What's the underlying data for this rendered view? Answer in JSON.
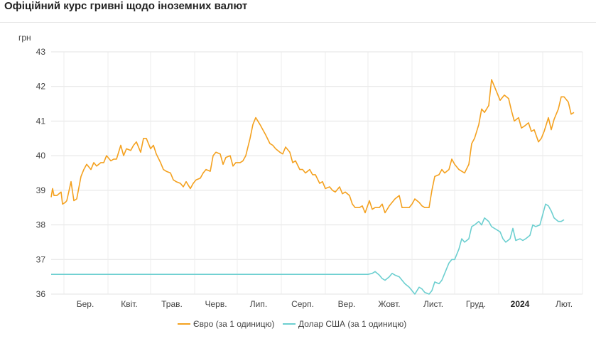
{
  "page": {
    "title": "Офіційний курс гривні щодо іноземних валют"
  },
  "chart_data": {
    "type": "line",
    "ylabel": "грн",
    "ylim": [
      36,
      43
    ],
    "yticks": [
      "36",
      "37",
      "38",
      "39",
      "40",
      "41",
      "42",
      "43"
    ],
    "grid": true,
    "legend_position": "bottom-center",
    "x_start": "2023-02-20",
    "x_end": "2024-02-29",
    "xticks": [
      {
        "label": "Бер.",
        "date": "2023-03-01",
        "bold": false
      },
      {
        "label": "Квіт.",
        "date": "2023-04-01",
        "bold": false
      },
      {
        "label": "Трав.",
        "date": "2023-05-01",
        "bold": false
      },
      {
        "label": "Черв.",
        "date": "2023-06-01",
        "bold": false
      },
      {
        "label": "Лип.",
        "date": "2023-07-01",
        "bold": false
      },
      {
        "label": "Серп.",
        "date": "2023-08-01",
        "bold": false
      },
      {
        "label": "Вер.",
        "date": "2023-09-01",
        "bold": false
      },
      {
        "label": "Жовт.",
        "date": "2023-10-01",
        "bold": false
      },
      {
        "label": "Лист.",
        "date": "2023-11-01",
        "bold": false
      },
      {
        "label": "Груд.",
        "date": "2023-12-01",
        "bold": false
      },
      {
        "label": "2024",
        "date": "2024-01-01",
        "bold": true
      },
      {
        "label": "Лют.",
        "date": "2024-02-01",
        "bold": false
      }
    ],
    "series": [
      {
        "name": "Євро (за 1 одиницю)",
        "color": "#F4A11F",
        "points": [
          [
            "2023-02-20",
            38.8
          ],
          [
            "2023-02-21",
            39.05
          ],
          [
            "2023-02-22",
            38.85
          ],
          [
            "2023-02-24",
            38.85
          ],
          [
            "2023-02-27",
            38.95
          ],
          [
            "2023-02-28",
            38.6
          ],
          [
            "2023-03-02",
            38.65
          ],
          [
            "2023-03-03",
            38.7
          ],
          [
            "2023-03-06",
            39.25
          ],
          [
            "2023-03-08",
            38.7
          ],
          [
            "2023-03-10",
            38.75
          ],
          [
            "2023-03-13",
            39.4
          ],
          [
            "2023-03-15",
            39.6
          ],
          [
            "2023-03-17",
            39.75
          ],
          [
            "2023-03-20",
            39.6
          ],
          [
            "2023-03-22",
            39.8
          ],
          [
            "2023-03-24",
            39.7
          ],
          [
            "2023-03-27",
            39.8
          ],
          [
            "2023-03-29",
            39.8
          ],
          [
            "2023-03-31",
            40.0
          ],
          [
            "2023-04-03",
            39.85
          ],
          [
            "2023-04-05",
            39.9
          ],
          [
            "2023-04-07",
            39.9
          ],
          [
            "2023-04-10",
            40.3
          ],
          [
            "2023-04-12",
            40.0
          ],
          [
            "2023-04-14",
            40.2
          ],
          [
            "2023-04-17",
            40.15
          ],
          [
            "2023-04-19",
            40.3
          ],
          [
            "2023-04-21",
            40.4
          ],
          [
            "2023-04-24",
            40.1
          ],
          [
            "2023-04-26",
            40.5
          ],
          [
            "2023-04-28",
            40.5
          ],
          [
            "2023-05-01",
            40.2
          ],
          [
            "2023-05-03",
            40.3
          ],
          [
            "2023-05-05",
            40.05
          ],
          [
            "2023-05-08",
            39.8
          ],
          [
            "2023-05-10",
            39.6
          ],
          [
            "2023-05-12",
            39.55
          ],
          [
            "2023-05-15",
            39.5
          ],
          [
            "2023-05-17",
            39.3
          ],
          [
            "2023-05-19",
            39.25
          ],
          [
            "2023-05-22",
            39.2
          ],
          [
            "2023-05-24",
            39.1
          ],
          [
            "2023-05-26",
            39.25
          ],
          [
            "2023-05-29",
            39.05
          ],
          [
            "2023-05-31",
            39.2
          ],
          [
            "2023-06-02",
            39.3
          ],
          [
            "2023-06-05",
            39.35
          ],
          [
            "2023-06-07",
            39.5
          ],
          [
            "2023-06-09",
            39.6
          ],
          [
            "2023-06-12",
            39.55
          ],
          [
            "2023-06-14",
            40.0
          ],
          [
            "2023-06-16",
            40.1
          ],
          [
            "2023-06-19",
            40.05
          ],
          [
            "2023-06-21",
            39.75
          ],
          [
            "2023-06-23",
            39.95
          ],
          [
            "2023-06-26",
            40.0
          ],
          [
            "2023-06-28",
            39.7
          ],
          [
            "2023-06-30",
            39.8
          ],
          [
            "2023-07-03",
            39.8
          ],
          [
            "2023-07-05",
            39.85
          ],
          [
            "2023-07-07",
            40.0
          ],
          [
            "2023-07-10",
            40.5
          ],
          [
            "2023-07-12",
            40.9
          ],
          [
            "2023-07-14",
            41.1
          ],
          [
            "2023-07-17",
            40.9
          ],
          [
            "2023-07-19",
            40.75
          ],
          [
            "2023-07-21",
            40.6
          ],
          [
            "2023-07-24",
            40.35
          ],
          [
            "2023-07-26",
            40.3
          ],
          [
            "2023-07-28",
            40.2
          ],
          [
            "2023-07-31",
            40.1
          ],
          [
            "2023-08-02",
            40.05
          ],
          [
            "2023-08-04",
            40.25
          ],
          [
            "2023-08-07",
            40.1
          ],
          [
            "2023-08-09",
            39.8
          ],
          [
            "2023-08-11",
            39.85
          ],
          [
            "2023-08-14",
            39.6
          ],
          [
            "2023-08-16",
            39.6
          ],
          [
            "2023-08-18",
            39.5
          ],
          [
            "2023-08-21",
            39.6
          ],
          [
            "2023-08-23",
            39.45
          ],
          [
            "2023-08-25",
            39.45
          ],
          [
            "2023-08-28",
            39.2
          ],
          [
            "2023-08-30",
            39.25
          ],
          [
            "2023-09-01",
            39.05
          ],
          [
            "2023-09-04",
            39.1
          ],
          [
            "2023-09-06",
            39.0
          ],
          [
            "2023-09-08",
            38.95
          ],
          [
            "2023-09-11",
            39.1
          ],
          [
            "2023-09-13",
            38.9
          ],
          [
            "2023-09-15",
            38.95
          ],
          [
            "2023-09-18",
            38.85
          ],
          [
            "2023-09-20",
            38.6
          ],
          [
            "2023-09-22",
            38.5
          ],
          [
            "2023-09-25",
            38.5
          ],
          [
            "2023-09-27",
            38.55
          ],
          [
            "2023-09-29",
            38.35
          ],
          [
            "2023-10-02",
            38.7
          ],
          [
            "2023-10-04",
            38.45
          ],
          [
            "2023-10-06",
            38.5
          ],
          [
            "2023-10-09",
            38.5
          ],
          [
            "2023-10-11",
            38.6
          ],
          [
            "2023-10-13",
            38.35
          ],
          [
            "2023-10-16",
            38.55
          ],
          [
            "2023-10-18",
            38.65
          ],
          [
            "2023-10-20",
            38.75
          ],
          [
            "2023-10-23",
            38.85
          ],
          [
            "2023-10-25",
            38.5
          ],
          [
            "2023-10-27",
            38.5
          ],
          [
            "2023-10-30",
            38.5
          ],
          [
            "2023-11-01",
            38.6
          ],
          [
            "2023-11-03",
            38.75
          ],
          [
            "2023-11-06",
            38.65
          ],
          [
            "2023-11-08",
            38.55
          ],
          [
            "2023-11-10",
            38.5
          ],
          [
            "2023-11-13",
            38.5
          ],
          [
            "2023-11-15",
            39.0
          ],
          [
            "2023-11-17",
            39.4
          ],
          [
            "2023-11-20",
            39.45
          ],
          [
            "2023-11-22",
            39.6
          ],
          [
            "2023-11-24",
            39.5
          ],
          [
            "2023-11-27",
            39.6
          ],
          [
            "2023-11-29",
            39.9
          ],
          [
            "2023-12-01",
            39.75
          ],
          [
            "2023-12-04",
            39.6
          ],
          [
            "2023-12-06",
            39.55
          ],
          [
            "2023-12-08",
            39.5
          ],
          [
            "2023-12-11",
            39.75
          ],
          [
            "2023-12-13",
            40.35
          ],
          [
            "2023-12-15",
            40.5
          ],
          [
            "2023-12-18",
            40.9
          ],
          [
            "2023-12-20",
            41.35
          ],
          [
            "2023-12-22",
            41.25
          ],
          [
            "2023-12-25",
            41.45
          ],
          [
            "2023-12-27",
            42.2
          ],
          [
            "2023-12-29",
            42.0
          ],
          [
            "2024-01-02",
            41.6
          ],
          [
            "2024-01-04",
            41.7
          ],
          [
            "2024-01-05",
            41.75
          ],
          [
            "2024-01-08",
            41.65
          ],
          [
            "2024-01-10",
            41.3
          ],
          [
            "2024-01-12",
            41.0
          ],
          [
            "2024-01-15",
            41.1
          ],
          [
            "2024-01-17",
            40.8
          ],
          [
            "2024-01-19",
            40.85
          ],
          [
            "2024-01-22",
            40.95
          ],
          [
            "2024-01-24",
            40.7
          ],
          [
            "2024-01-26",
            40.75
          ],
          [
            "2024-01-29",
            40.4
          ],
          [
            "2024-01-31",
            40.5
          ],
          [
            "2024-02-02",
            40.7
          ],
          [
            "2024-02-05",
            41.1
          ],
          [
            "2024-02-07",
            40.75
          ],
          [
            "2024-02-09",
            41.05
          ],
          [
            "2024-02-12",
            41.35
          ],
          [
            "2024-02-14",
            41.7
          ],
          [
            "2024-02-16",
            41.7
          ],
          [
            "2024-02-19",
            41.55
          ],
          [
            "2024-02-21",
            41.2
          ],
          [
            "2024-02-23",
            41.25
          ]
        ]
      },
      {
        "name": "Долар США (за 1 одиницю)",
        "color": "#6CCFD0",
        "points": [
          [
            "2023-02-20",
            36.57
          ],
          [
            "2023-10-01",
            36.57
          ],
          [
            "2023-10-04",
            36.6
          ],
          [
            "2023-10-06",
            36.65
          ],
          [
            "2023-10-09",
            36.55
          ],
          [
            "2023-10-11",
            36.45
          ],
          [
            "2023-10-13",
            36.4
          ],
          [
            "2023-10-16",
            36.5
          ],
          [
            "2023-10-18",
            36.6
          ],
          [
            "2023-10-20",
            36.55
          ],
          [
            "2023-10-23",
            36.5
          ],
          [
            "2023-10-25",
            36.4
          ],
          [
            "2023-10-27",
            36.3
          ],
          [
            "2023-10-30",
            36.2
          ],
          [
            "2023-11-01",
            36.1
          ],
          [
            "2023-11-03",
            36.0
          ],
          [
            "2023-11-06",
            36.2
          ],
          [
            "2023-11-08",
            36.15
          ],
          [
            "2023-11-10",
            36.05
          ],
          [
            "2023-11-13",
            36.0
          ],
          [
            "2023-11-15",
            36.1
          ],
          [
            "2023-11-17",
            36.35
          ],
          [
            "2023-11-20",
            36.3
          ],
          [
            "2023-11-22",
            36.4
          ],
          [
            "2023-11-24",
            36.6
          ],
          [
            "2023-11-27",
            36.9
          ],
          [
            "2023-11-29",
            37.0
          ],
          [
            "2023-12-01",
            37.0
          ],
          [
            "2023-12-04",
            37.3
          ],
          [
            "2023-12-06",
            37.6
          ],
          [
            "2023-12-08",
            37.5
          ],
          [
            "2023-12-11",
            37.6
          ],
          [
            "2023-12-13",
            37.95
          ],
          [
            "2023-12-15",
            38.0
          ],
          [
            "2023-12-18",
            38.1
          ],
          [
            "2023-12-20",
            38.0
          ],
          [
            "2023-12-22",
            38.2
          ],
          [
            "2023-12-25",
            38.1
          ],
          [
            "2023-12-27",
            37.95
          ],
          [
            "2023-12-29",
            37.9
          ],
          [
            "2024-01-02",
            37.8
          ],
          [
            "2024-01-04",
            37.6
          ],
          [
            "2024-01-06",
            37.5
          ],
          [
            "2024-01-09",
            37.6
          ],
          [
            "2024-01-11",
            37.9
          ],
          [
            "2024-01-13",
            37.55
          ],
          [
            "2024-01-16",
            37.6
          ],
          [
            "2024-01-18",
            37.55
          ],
          [
            "2024-01-20",
            37.6
          ],
          [
            "2024-01-23",
            37.7
          ],
          [
            "2024-01-25",
            38.0
          ],
          [
            "2024-01-27",
            37.95
          ],
          [
            "2024-01-30",
            38.0
          ],
          [
            "2024-02-01",
            38.3
          ],
          [
            "2024-02-03",
            38.6
          ],
          [
            "2024-02-05",
            38.55
          ],
          [
            "2024-02-07",
            38.4
          ],
          [
            "2024-02-09",
            38.2
          ],
          [
            "2024-02-12",
            38.1
          ],
          [
            "2024-02-14",
            38.1
          ],
          [
            "2024-02-16",
            38.15
          ]
        ]
      }
    ]
  }
}
